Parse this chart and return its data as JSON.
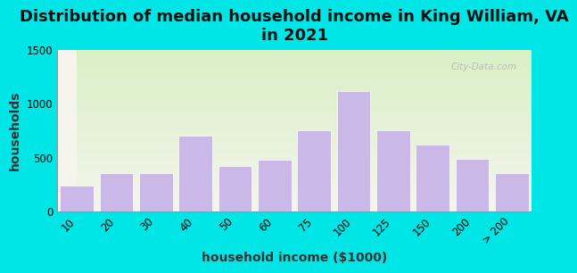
{
  "title": "Distribution of median household income in King William, VA\nin 2021",
  "xlabel": "household income ($1000)",
  "ylabel": "households",
  "categories": [
    "10",
    "20",
    "30",
    "40",
    "50",
    "60",
    "75",
    "100",
    "125",
    "150",
    "200",
    "> 200"
  ],
  "values": [
    240,
    360,
    355,
    700,
    420,
    480,
    750,
    1120,
    750,
    620,
    490,
    355
  ],
  "bar_color": "#c9b8e8",
  "bar_edge_color": "#ffffff",
  "background_top": "#d8f0c0",
  "background_bottom": "#f5f5ee",
  "outer_background": "#00e5e5",
  "ylim": [
    0,
    1500
  ],
  "yticks": [
    0,
    500,
    1000,
    1500
  ],
  "title_fontsize": 13,
  "axis_label_fontsize": 10,
  "tick_fontsize": 8.5,
  "watermark": "City-Data.com"
}
